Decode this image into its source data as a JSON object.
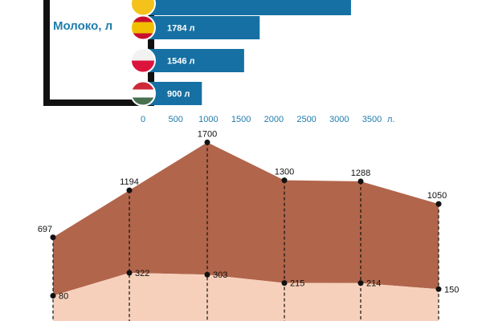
{
  "chart_data": [
    {
      "type": "bar",
      "title": "",
      "ylabel": "Молоко, л",
      "xunit": "л.",
      "xlim": [
        0,
        3500
      ],
      "xticks": [
        0,
        500,
        1000,
        1500,
        2000,
        2500,
        3000,
        3500
      ],
      "bars": [
        {
          "flag": "yellow-flag-partial",
          "value": 3180,
          "label": ""
        },
        {
          "flag": "spain-flag",
          "value": 1784,
          "label": "1784 л"
        },
        {
          "flag": "poland-flag",
          "value": 1546,
          "label": "1546 л"
        },
        {
          "flag": "hungary-flag",
          "value": 900,
          "label": "900 л"
        }
      ],
      "colors": {
        "bar": "#1670a3",
        "label": "#ffffff",
        "axis": "#1f7dac"
      }
    },
    {
      "type": "area",
      "title": "",
      "series": [
        {
          "values": [
            697,
            1194,
            1700,
            1300,
            1288,
            1050
          ]
        },
        {
          "values": [
            80,
            322,
            303,
            215,
            214,
            150
          ]
        }
      ],
      "colors": {
        "upper": "#b1654b",
        "lower": "#f7d0bb",
        "drop_line": "#111111",
        "point": "#111111"
      }
    }
  ]
}
